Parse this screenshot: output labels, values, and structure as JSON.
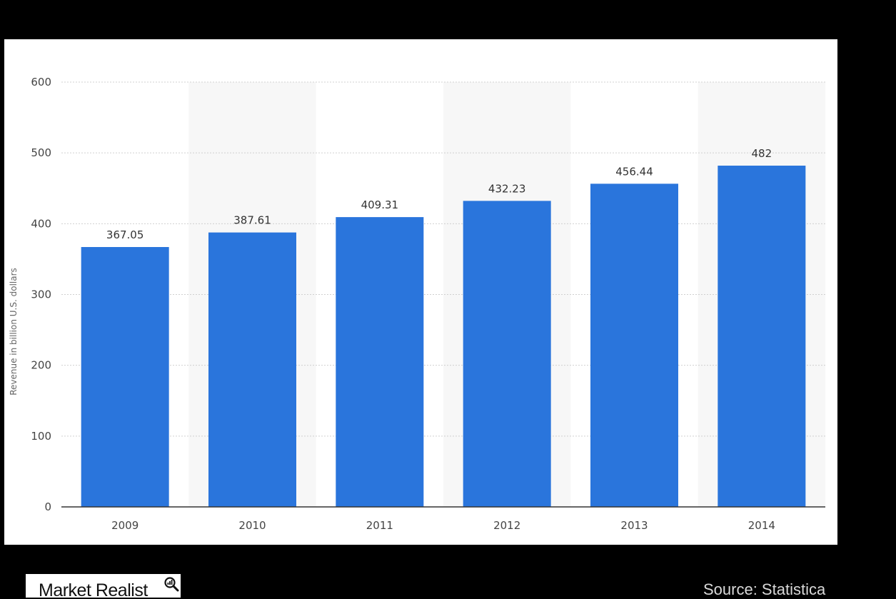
{
  "chart_data": {
    "type": "bar",
    "categories": [
      "2009",
      "2010",
      "2011",
      "2012",
      "2013",
      "2014"
    ],
    "values": [
      367.05,
      387.61,
      409.31,
      432.23,
      456.44,
      482
    ],
    "value_labels": [
      "367.05",
      "387.61",
      "409.31",
      "432.23",
      "456.44",
      "482"
    ],
    "title": "",
    "xlabel": "",
    "ylabel": "Revenue in billion U.S. dollars",
    "ylim": [
      0,
      600
    ],
    "yticks": [
      0,
      100,
      200,
      300,
      400,
      500,
      600
    ],
    "grid": true,
    "bar_color": "#2a75dc",
    "band_color": "#f7f7f7"
  },
  "logo": {
    "text": "Market Realist",
    "icon": "magnifier-icon"
  },
  "source": "Source: Statistica"
}
